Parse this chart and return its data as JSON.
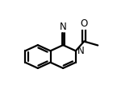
{
  "background_color": "#ffffff",
  "line_color": "#000000",
  "bond_lw": 1.6,
  "font_size": 8.5,
  "BL": 0.108,
  "rcx": 0.455,
  "rcy": 0.484,
  "N_label_text": "N",
  "O_label_text": "O",
  "CN_label_text": "N"
}
